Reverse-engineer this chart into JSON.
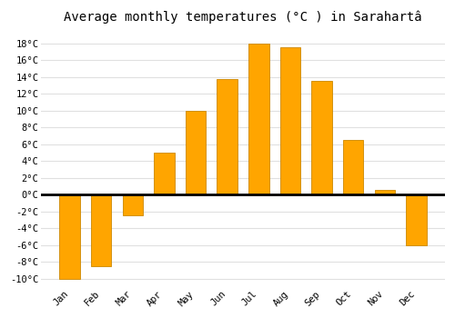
{
  "title": "Average monthly temperatures (°C ) in Sarahartâ",
  "months": [
    "Jan",
    "Feb",
    "Mar",
    "Apr",
    "May",
    "Jun",
    "Jul",
    "Aug",
    "Sep",
    "Oct",
    "Nov",
    "Dec"
  ],
  "values": [
    -10,
    -8.5,
    -2.5,
    5,
    10,
    13.7,
    18,
    17.5,
    13.5,
    6.5,
    0.5,
    -6
  ],
  "bar_color": "#FFA500",
  "bar_edge_color": "#CC8800",
  "ylim": [
    -11,
    19.5
  ],
  "yticks": [
    -10,
    -8,
    -6,
    -4,
    -2,
    0,
    2,
    4,
    6,
    8,
    10,
    12,
    14,
    16,
    18
  ],
  "ytick_labels": [
    "-10°C",
    "-8°C",
    "-6°C",
    "-4°C",
    "-2°C",
    "0°C",
    "2°C",
    "4°C",
    "6°C",
    "8°C",
    "10°C",
    "12°C",
    "14°C",
    "16°C",
    "18°C"
  ],
  "plot_bg_color": "#ffffff",
  "fig_bg_color": "#ffffff",
  "grid_color": "#e0e0e0",
  "zero_line_color": "#000000",
  "title_fontsize": 10,
  "tick_fontsize": 7.5,
  "bar_width": 0.65
}
